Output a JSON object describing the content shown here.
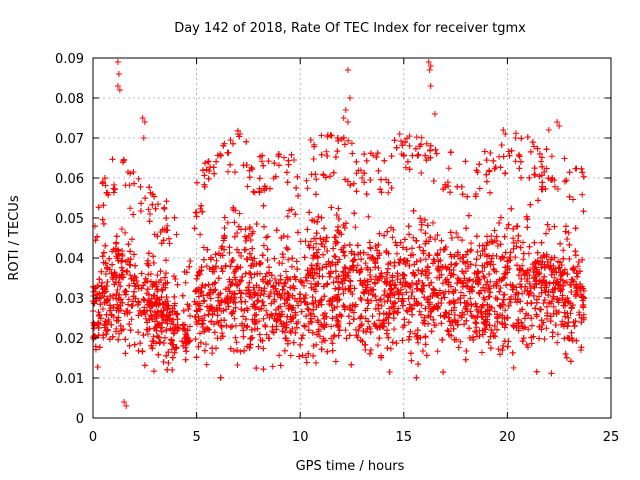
{
  "chart_data": {
    "type": "scatter",
    "title": "Day 142 of 2018, Rate Of TEC Index for receiver tgmx",
    "xlabel": "GPS time / hours",
    "ylabel": "ROTI / TECUs",
    "xlim": [
      0,
      25
    ],
    "ylim": [
      0,
      0.09
    ],
    "x_ticks": [
      "0",
      "5",
      "10",
      "15",
      "20",
      "25"
    ],
    "y_ticks": [
      "0",
      "0.01",
      "0.02",
      "0.03",
      "0.04",
      "0.05",
      "0.06",
      "0.07",
      "0.08",
      "0.09"
    ],
    "grid": true,
    "marker": "+",
    "color": "#ff0000",
    "x_range_of_points": [
      0,
      23.7
    ],
    "density_envelope": {
      "x": [
        0,
        1,
        2,
        3,
        4,
        4.5,
        5,
        6,
        7,
        8,
        9,
        10,
        11,
        12,
        13,
        14,
        15,
        16,
        17,
        18,
        19,
        20,
        21,
        22,
        23,
        23.7
      ],
      "y_low": [
        0.012,
        0.01,
        0.01,
        0.009,
        0.008,
        0.01,
        0.008,
        0.007,
        0.007,
        0.007,
        0.007,
        0.008,
        0.007,
        0.007,
        0.007,
        0.007,
        0.007,
        0.01,
        0.008,
        0.008,
        0.008,
        0.009,
        0.009,
        0.009,
        0.008,
        0.008
      ],
      "y_high": [
        0.04,
        0.055,
        0.05,
        0.045,
        0.04,
        0.03,
        0.05,
        0.055,
        0.06,
        0.055,
        0.055,
        0.055,
        0.06,
        0.06,
        0.055,
        0.055,
        0.06,
        0.06,
        0.055,
        0.055,
        0.055,
        0.06,
        0.06,
        0.055,
        0.055,
        0.05
      ]
    },
    "notable_points": [
      {
        "x": 1.2,
        "y": 0.089
      },
      {
        "x": 1.25,
        "y": 0.086
      },
      {
        "x": 1.2,
        "y": 0.083
      },
      {
        "x": 1.3,
        "y": 0.082
      },
      {
        "x": 2.4,
        "y": 0.075
      },
      {
        "x": 2.5,
        "y": 0.074
      },
      {
        "x": 2.45,
        "y": 0.07
      },
      {
        "x": 7.0,
        "y": 0.071
      },
      {
        "x": 7.1,
        "y": 0.071
      },
      {
        "x": 12.3,
        "y": 0.087
      },
      {
        "x": 12.4,
        "y": 0.08
      },
      {
        "x": 12.2,
        "y": 0.077
      },
      {
        "x": 12.1,
        "y": 0.075
      },
      {
        "x": 12.3,
        "y": 0.074
      },
      {
        "x": 16.2,
        "y": 0.089
      },
      {
        "x": 16.3,
        "y": 0.088
      },
      {
        "x": 16.25,
        "y": 0.087
      },
      {
        "x": 16.3,
        "y": 0.083
      },
      {
        "x": 16.5,
        "y": 0.076
      },
      {
        "x": 19.8,
        "y": 0.072
      },
      {
        "x": 19.9,
        "y": 0.071
      },
      {
        "x": 20.4,
        "y": 0.07
      },
      {
        "x": 22.0,
        "y": 0.072
      },
      {
        "x": 22.4,
        "y": 0.074
      },
      {
        "x": 22.5,
        "y": 0.073
      },
      {
        "x": 14.8,
        "y": 0.071
      },
      {
        "x": 14.9,
        "y": 0.066
      },
      {
        "x": 1.5,
        "y": 0.004
      },
      {
        "x": 1.6,
        "y": 0.003
      }
    ],
    "gaps": [
      [
        4.1,
        4.3
      ],
      [
        4.7,
        4.9
      ]
    ]
  }
}
